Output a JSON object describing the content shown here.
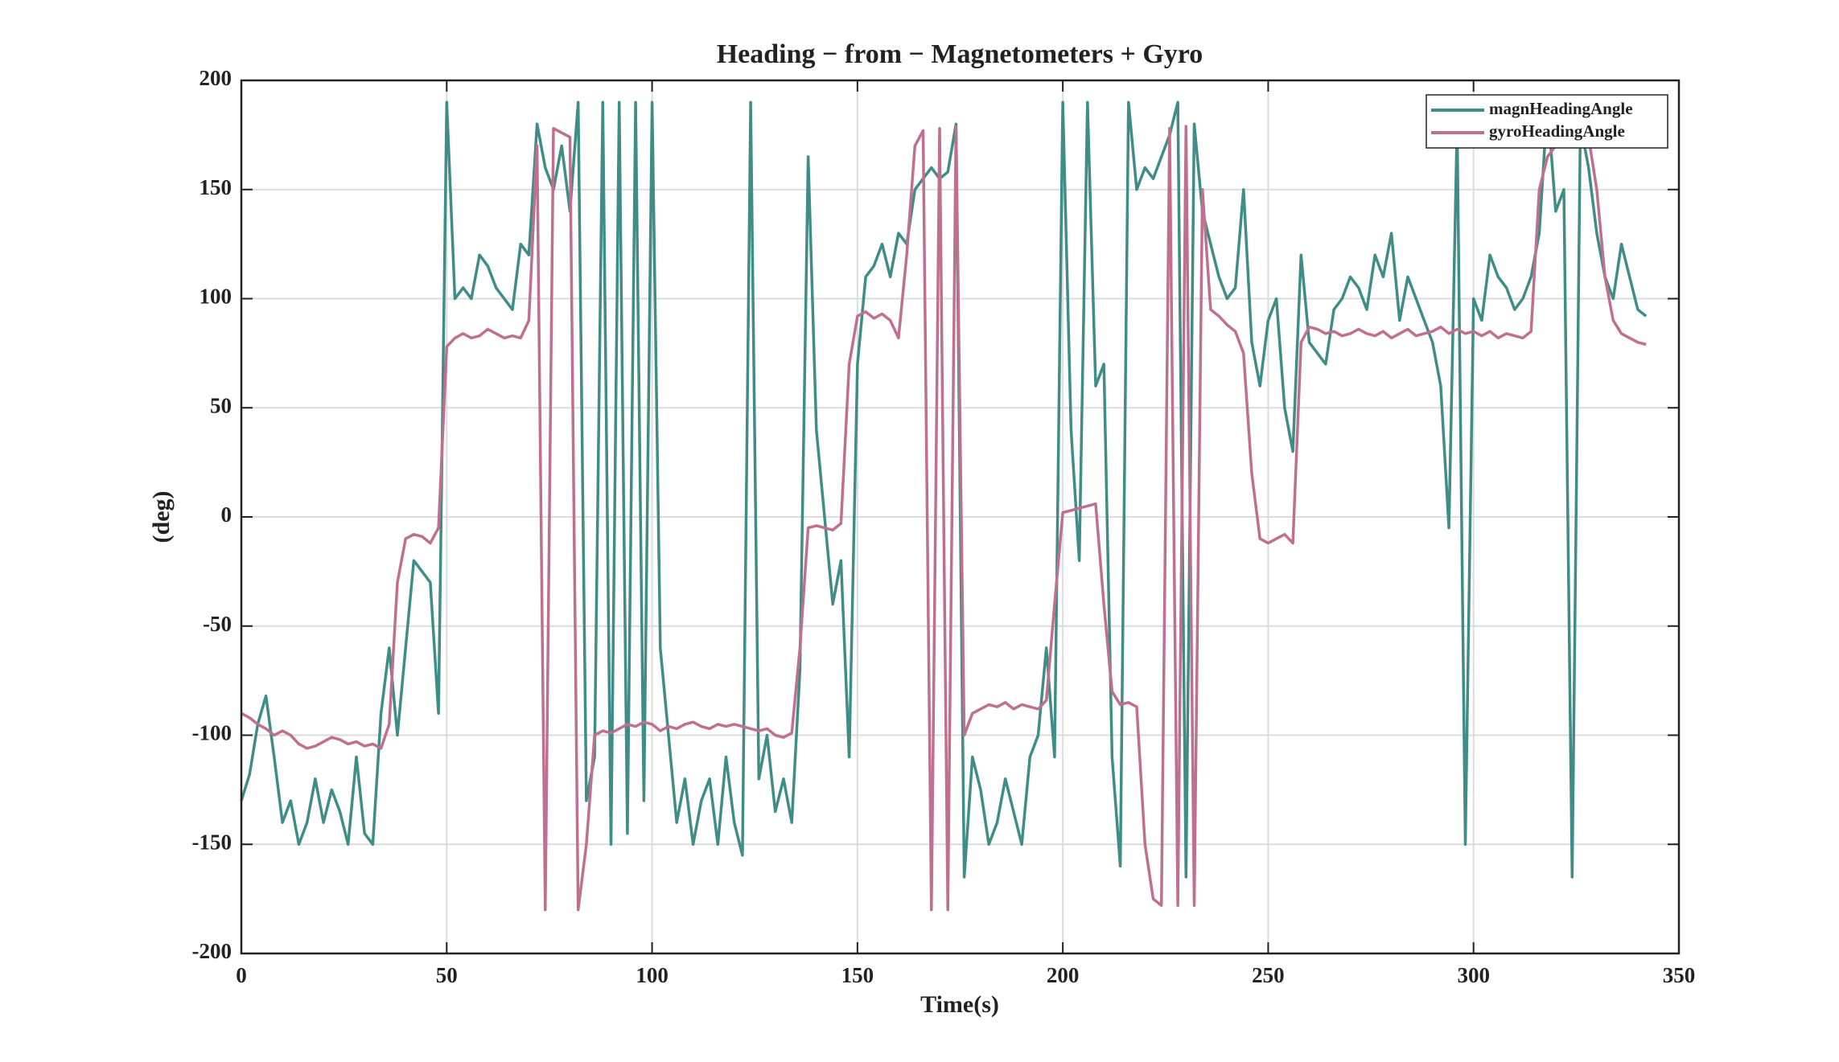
{
  "chart_data": {
    "type": "line",
    "title": "Heading − from − Magnetometers + Gyro",
    "x_label": "Time(s)",
    "y_label": "(deg)",
    "x": [
      0,
      2,
      4,
      6,
      8,
      10,
      12,
      14,
      16,
      18,
      20,
      22,
      24,
      26,
      28,
      30,
      32,
      34,
      36,
      38,
      40,
      42,
      44,
      46,
      48,
      50,
      52,
      54,
      56,
      58,
      60,
      62,
      64,
      66,
      68,
      70,
      72,
      74,
      76,
      78,
      80,
      82,
      84,
      86,
      88,
      90,
      92,
      94,
      96,
      98,
      100,
      102,
      104,
      106,
      108,
      110,
      112,
      114,
      116,
      118,
      120,
      122,
      124,
      126,
      128,
      130,
      132,
      134,
      136,
      138,
      140,
      142,
      144,
      146,
      148,
      150,
      152,
      154,
      156,
      158,
      160,
      162,
      164,
      166,
      168,
      170,
      172,
      174,
      176,
      178,
      180,
      182,
      184,
      186,
      188,
      190,
      192,
      194,
      196,
      198,
      200,
      202,
      204,
      206,
      208,
      210,
      212,
      214,
      216,
      218,
      220,
      222,
      224,
      226,
      228,
      230,
      232,
      234,
      236,
      238,
      240,
      242,
      244,
      246,
      248,
      250,
      252,
      254,
      256,
      258,
      260,
      262,
      264,
      266,
      268,
      270,
      272,
      274,
      276,
      278,
      280,
      282,
      284,
      286,
      288,
      290,
      292,
      294,
      296,
      298,
      300,
      302,
      304,
      306,
      308,
      310,
      312,
      314,
      316,
      318,
      320,
      322,
      324,
      326,
      328,
      330,
      332,
      334,
      336,
      338,
      340,
      342
    ],
    "series": [
      {
        "name": "magnHeadingAngle",
        "color": "#3f8d86",
        "values": [
          -130,
          -118,
          -95,
          -82,
          -110,
          -140,
          -130,
          -150,
          -140,
          -120,
          -140,
          -125,
          -135,
          -150,
          -110,
          -145,
          -150,
          -90,
          -60,
          -100,
          -60,
          -20,
          -25,
          -30,
          -90,
          190,
          100,
          105,
          100,
          120,
          115,
          105,
          100,
          95,
          125,
          120,
          180,
          160,
          150,
          170,
          140,
          190,
          -130,
          -110,
          190,
          -150,
          190,
          -145,
          190,
          -130,
          190,
          -60,
          -100,
          -140,
          -120,
          -150,
          -130,
          -120,
          -150,
          -110,
          -140,
          -155,
          190,
          -120,
          -100,
          -135,
          -120,
          -140,
          -70,
          165,
          40,
          0,
          -40,
          -20,
          -110,
          70,
          110,
          115,
          125,
          110,
          130,
          125,
          150,
          155,
          160,
          155,
          158,
          180,
          -165,
          -110,
          -125,
          -150,
          -140,
          -120,
          -135,
          -150,
          -110,
          -100,
          -60,
          -110,
          190,
          40,
          -20,
          190,
          60,
          70,
          -110,
          -160,
          190,
          150,
          160,
          155,
          165,
          175,
          190,
          -165,
          180,
          140,
          125,
          110,
          100,
          105,
          150,
          80,
          60,
          90,
          100,
          50,
          30,
          120,
          80,
          75,
          70,
          95,
          100,
          110,
          105,
          95,
          120,
          110,
          130,
          90,
          110,
          100,
          90,
          80,
          60,
          -5,
          180,
          -150,
          100,
          90,
          120,
          110,
          105,
          95,
          100,
          110,
          130,
          190,
          140,
          150,
          -165,
          180,
          160,
          130,
          110,
          100,
          125,
          110,
          95,
          92
        ]
      },
      {
        "name": "gyroHeadingAngle",
        "color": "#c0708f",
        "values": [
          -90,
          -92,
          -95,
          -97,
          -100,
          -98,
          -100,
          -104,
          -106,
          -105,
          -103,
          -101,
          -102,
          -104,
          -103,
          -105,
          -104,
          -106,
          -95,
          -30,
          -10,
          -8,
          -9,
          -12,
          -5,
          78,
          82,
          84,
          82,
          83,
          86,
          84,
          82,
          83,
          82,
          90,
          170,
          -180,
          178,
          176,
          174,
          -180,
          -150,
          -100,
          -98,
          -99,
          -97,
          -95,
          -96,
          -94,
          -95,
          -98,
          -96,
          -97,
          -95,
          -94,
          -96,
          -97,
          -95,
          -96,
          -95,
          -96,
          -97,
          -98,
          -97,
          -100,
          -101,
          -99,
          -60,
          -5,
          -4,
          -5,
          -6,
          -3,
          70,
          92,
          94,
          91,
          93,
          90,
          82,
          120,
          170,
          177,
          -180,
          178,
          -180,
          179,
          -100,
          -90,
          -88,
          -86,
          -87,
          -85,
          -88,
          -86,
          -87,
          -88,
          -84,
          -40,
          2,
          3,
          4,
          5,
          6,
          -40,
          -80,
          -86,
          -85,
          -87,
          -150,
          -175,
          -178,
          178,
          -178,
          179,
          -178,
          150,
          95,
          92,
          88,
          85,
          75,
          20,
          -10,
          -12,
          -10,
          -8,
          -12,
          80,
          87,
          86,
          84,
          85,
          83,
          84,
          86,
          84,
          83,
          85,
          82,
          84,
          86,
          83,
          84,
          85,
          87,
          84,
          86,
          84,
          85,
          83,
          85,
          82,
          84,
          83,
          82,
          85,
          150,
          165,
          170,
          173,
          171,
          172,
          174,
          150,
          110,
          90,
          84,
          82,
          80,
          79
        ]
      }
    ],
    "xlim": [
      0,
      350
    ],
    "xticks": [
      0,
      50,
      100,
      150,
      200,
      250,
      300,
      350
    ],
    "ylim": [
      -200,
      200
    ],
    "yticks": [
      -200,
      -150,
      -100,
      -50,
      0,
      50,
      100,
      150,
      200
    ],
    "grid": true,
    "legend": "northeast"
  }
}
